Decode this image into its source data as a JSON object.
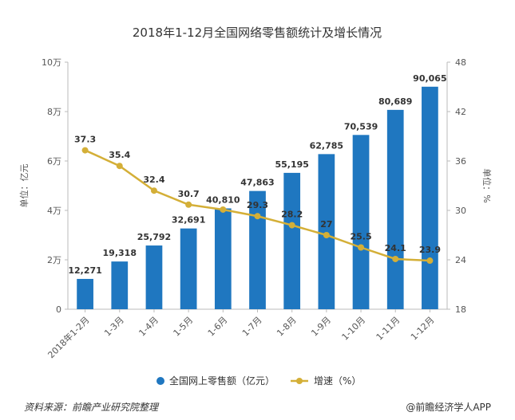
{
  "chart_data": {
    "type": "bar",
    "title": "2018年1-12月全国网络零售额统计及增长情况",
    "categories": [
      "2018年1-2月",
      "1-3月",
      "1-4月",
      "1-5月",
      "1-6月",
      "1-7月",
      "1-8月",
      "1-9月",
      "1-10月",
      "1-11月",
      "1-12月"
    ],
    "series": [
      {
        "name": "全国网上零售额（亿元）",
        "type": "bar",
        "axis": "left",
        "color": "#1f77c0",
        "values": [
          12271,
          19318,
          25792,
          32691,
          40810,
          47863,
          55195,
          62785,
          70539,
          80689,
          90065
        ],
        "labels": [
          "12,271",
          "19,318",
          "25,792",
          "32,691",
          "40,810",
          "47,863",
          "55,195",
          "62,785",
          "70,539",
          "80,689",
          "90,065"
        ]
      },
      {
        "name": "增速（%）",
        "type": "line",
        "axis": "right",
        "color": "#d4af37",
        "values": [
          37.3,
          35.4,
          32.4,
          30.7,
          30.1,
          29.3,
          28.2,
          27,
          25.5,
          24.1,
          23.9
        ],
        "labels": [
          "37.3",
          "35.4",
          "32.4",
          "30.7",
          "",
          "29.3",
          "28.2",
          "27",
          "25.5",
          "24.1",
          "23.9"
        ]
      }
    ],
    "ylabel": "单位：亿元",
    "ylabel_right": "单位：%",
    "ylim": [
      0,
      100000
    ],
    "ylim_right": [
      18,
      48
    ],
    "yticks": [
      "0",
      "2万",
      "4万",
      "6万",
      "8万",
      "10万"
    ],
    "yticks_right": [
      "18",
      "24",
      "30",
      "36",
      "42",
      "48"
    ],
    "grid": false,
    "legend_position": "bottom"
  },
  "footer": {
    "source": "资料来源：前瞻产业研究院整理",
    "brand": "@前瞻经济学人APP"
  }
}
